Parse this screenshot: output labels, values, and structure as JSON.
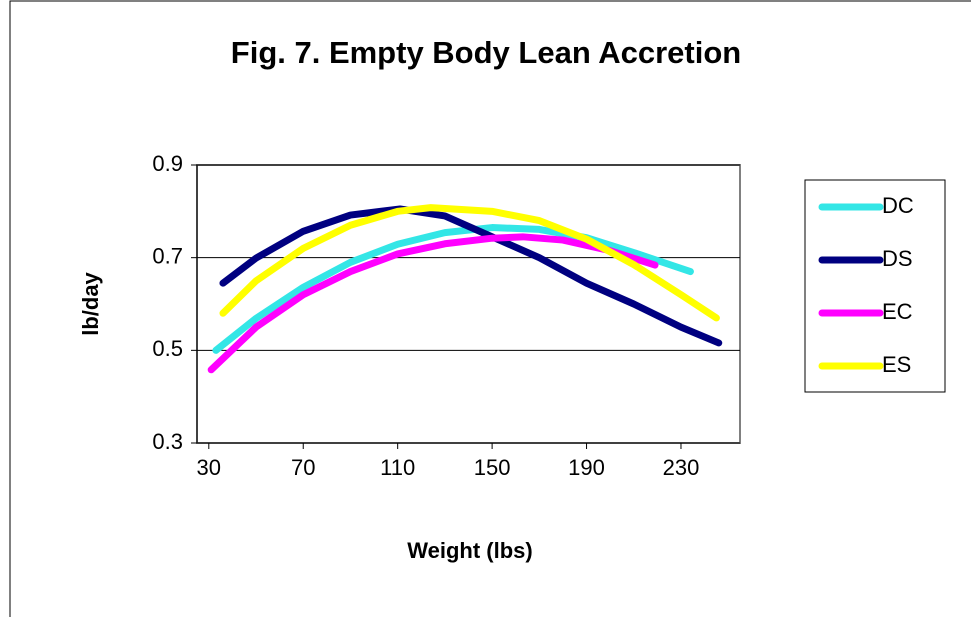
{
  "chart_data": {
    "type": "line",
    "title": "Fig. 7.  Empty Body Lean Accretion",
    "xlabel": "Weight (lbs)",
    "ylabel": "lb/day",
    "xlim": [
      25,
      255
    ],
    "xticks": [
      30,
      70,
      110,
      150,
      190,
      230
    ],
    "ylim": [
      0.3,
      0.9
    ],
    "yticks": [
      0.3,
      0.5,
      0.7,
      0.9
    ],
    "grid": true,
    "legend": "right",
    "series": [
      {
        "name": "DC",
        "color": "#33e6e6",
        "x": [
          33,
          50,
          70,
          90,
          110,
          130,
          150,
          170,
          190,
          210,
          234
        ],
        "values": [
          0.5,
          0.569,
          0.636,
          0.69,
          0.729,
          0.754,
          0.765,
          0.761,
          0.743,
          0.711,
          0.67
        ]
      },
      {
        "name": "DS",
        "color": "#000080",
        "x": [
          36,
          50,
          70,
          90,
          111,
          130,
          150,
          170,
          190,
          210,
          230,
          246
        ],
        "values": [
          0.645,
          0.699,
          0.757,
          0.792,
          0.805,
          0.79,
          0.745,
          0.7,
          0.645,
          0.6,
          0.55,
          0.516
        ]
      },
      {
        "name": "EC",
        "color": "#ff00ff",
        "x": [
          31,
          50,
          70,
          90,
          110,
          130,
          150,
          163,
          180,
          200,
          219
        ],
        "values": [
          0.458,
          0.55,
          0.62,
          0.67,
          0.708,
          0.73,
          0.742,
          0.745,
          0.738,
          0.715,
          0.684
        ]
      },
      {
        "name": "ES",
        "color": "#ffff00",
        "x": [
          36,
          50,
          70,
          90,
          110,
          124,
          150,
          170,
          190,
          210,
          230,
          245
        ],
        "values": [
          0.58,
          0.65,
          0.72,
          0.77,
          0.8,
          0.808,
          0.8,
          0.78,
          0.74,
          0.685,
          0.62,
          0.57
        ]
      }
    ]
  }
}
